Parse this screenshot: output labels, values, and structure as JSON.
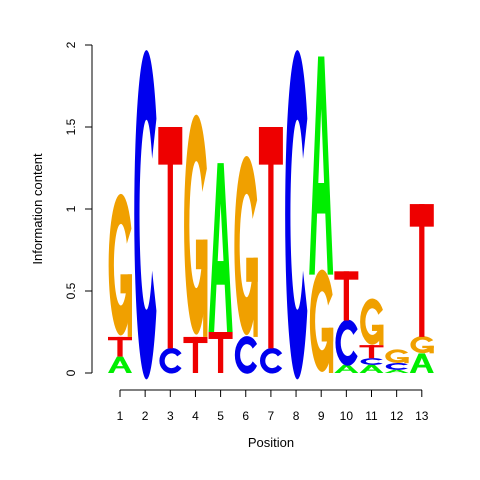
{
  "chart_data": {
    "type": "sequence-logo",
    "xlabel": "Position",
    "ylabel": "Information content",
    "ylim": [
      0,
      2
    ],
    "y_ticks": [
      "0",
      "0.5",
      "1",
      "1.5",
      "2"
    ],
    "positions": [
      "1",
      "2",
      "3",
      "4",
      "5",
      "6",
      "7",
      "8",
      "9",
      "10",
      "11",
      "12",
      "13"
    ],
    "colors": {
      "A": "#00ee00",
      "C": "#0000ee",
      "G": "#f0a000",
      "T": "#ee0000"
    },
    "stacks": [
      [
        {
          "b": "A",
          "h": 0.1
        },
        {
          "b": "T",
          "h": 0.12
        },
        {
          "b": "G",
          "h": 0.83
        }
      ],
      [
        {
          "b": "C",
          "h": 1.93
        }
      ],
      [
        {
          "b": "C",
          "h": 0.15
        },
        {
          "b": "T",
          "h": 1.35
        }
      ],
      [
        {
          "b": "T",
          "h": 0.22
        },
        {
          "b": "G",
          "h": 1.29
        }
      ],
      [
        {
          "b": "T",
          "h": 0.25
        },
        {
          "b": "A",
          "h": 1.03
        }
      ],
      [
        {
          "b": "C",
          "h": 0.22
        },
        {
          "b": "G",
          "h": 1.05
        }
      ],
      [
        {
          "b": "C",
          "h": 0.15
        },
        {
          "b": "T",
          "h": 1.35
        }
      ],
      [
        {
          "b": "C",
          "h": 1.93
        }
      ],
      [
        {
          "b": "G",
          "h": 0.6
        },
        {
          "b": "A",
          "h": 1.33
        }
      ],
      [
        {
          "b": "A",
          "h": 0.05
        },
        {
          "b": "C",
          "h": 0.27
        },
        {
          "b": "T",
          "h": 0.3
        }
      ],
      [
        {
          "b": "A",
          "h": 0.05
        },
        {
          "b": "C",
          "h": 0.04
        },
        {
          "b": "T",
          "h": 0.08
        },
        {
          "b": "G",
          "h": 0.27
        }
      ],
      [
        {
          "b": "A",
          "h": 0.02
        },
        {
          "b": "C",
          "h": 0.04
        },
        {
          "b": "G",
          "h": 0.08
        }
      ],
      [
        {
          "b": "A",
          "h": 0.12
        },
        {
          "b": "G",
          "h": 0.1
        },
        {
          "b": "T",
          "h": 0.81
        }
      ]
    ]
  }
}
